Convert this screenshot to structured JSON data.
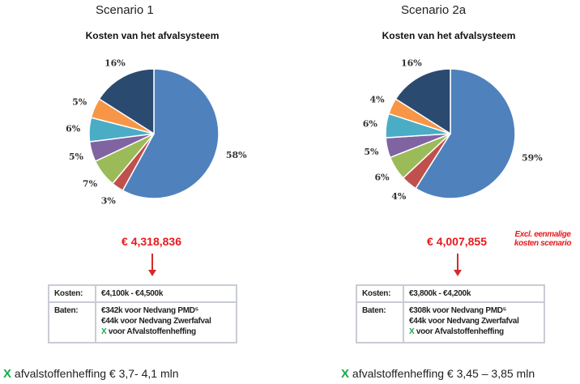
{
  "chart_data": [
    {
      "type": "pie",
      "scenario": "Scenario 1",
      "title": "Kosten van het afvalsysteem",
      "slices": [
        {
          "value": 58,
          "label": "58%",
          "color": "#4F81BD"
        },
        {
          "value": 3,
          "label": "3%",
          "color": "#C0504D"
        },
        {
          "value": 7,
          "label": "7%",
          "color": "#9BBB59"
        },
        {
          "value": 5,
          "label": "5%",
          "color": "#8064A2"
        },
        {
          "value": 6,
          "label": "6%",
          "color": "#4BACC6"
        },
        {
          "value": 5,
          "label": "5%",
          "color": "#F79646"
        },
        {
          "value": 16,
          "label": "16%",
          "color": "#2B4A70"
        }
      ],
      "total": "€ 4,318,836",
      "table": {
        "kosten_label": "Kosten:",
        "kosten": "€4,100k - €4,500k",
        "baten_label": "Baten:",
        "baten": [
          "€342k voor Nedvang PMD⁵",
          "€44k voor Nedvang Zwerfafval"
        ],
        "x": "X",
        "x_text": " voor Afvalstoffenheffing"
      },
      "bottom_x": "X",
      "bottom": " afvalstoffenheffing € 3,7- 4,1 mln"
    },
    {
      "type": "pie",
      "scenario": "Scenario 2a",
      "title": "Kosten van het afvalsysteem",
      "slices": [
        {
          "value": 59,
          "label": "59%",
          "color": "#4F81BD"
        },
        {
          "value": 4,
          "label": "4%",
          "color": "#C0504D"
        },
        {
          "value": 6,
          "label": "6%",
          "color": "#9BBB59"
        },
        {
          "value": 5,
          "label": "5%",
          "color": "#8064A2"
        },
        {
          "value": 6,
          "label": "6%",
          "color": "#4BACC6"
        },
        {
          "value": 4,
          "label": "4%",
          "color": "#F79646"
        },
        {
          "value": 16,
          "label": "16%",
          "color": "#2B4A70"
        }
      ],
      "total": "€ 4,007,855",
      "note": [
        "Excl. eenmalige",
        "kosten scenario"
      ],
      "table": {
        "kosten_label": "Kosten:",
        "kosten": "€3,800k - €4,200k",
        "baten_label": "Baten:",
        "baten": [
          "€308k voor Nedvang PMD⁵",
          "€44k voor Nedvang Zwerfafval"
        ],
        "x": "X",
        "x_text": " voor Afvalstoffenheffing"
      },
      "bottom_x": "X",
      "bottom": " afvalstoffenheffing € 3,45 – 3,85 mln"
    }
  ]
}
